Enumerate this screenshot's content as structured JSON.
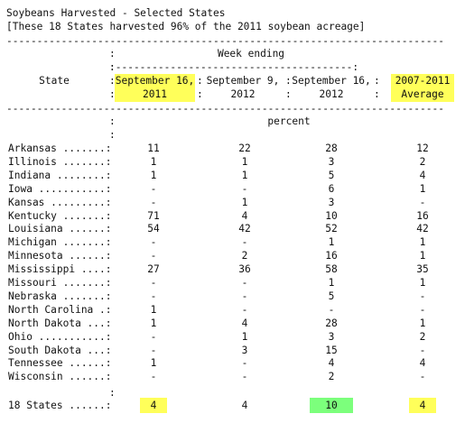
{
  "title_line1": "Soybeans Harvested - Selected States",
  "title_line2": "[These 18 States harvested 96% of the 2011 soybean acreage]",
  "header": {
    "week_ending": "Week ending",
    "state": "State",
    "col1": [
      "September 16,",
      "2011"
    ],
    "col2": [
      "September 9,",
      "2012"
    ],
    "col3": [
      "September 16,",
      "2012"
    ],
    "col4": [
      "2007-2011",
      "Average"
    ],
    "unit": "percent"
  },
  "rows": [
    {
      "state": "Arkansas .......:",
      "v": [
        "11",
        "22",
        "28",
        "12"
      ]
    },
    {
      "state": "Illinois .......:",
      "v": [
        "1",
        "1",
        "3",
        "2"
      ]
    },
    {
      "state": "Indiana ........:",
      "v": [
        "1",
        "1",
        "5",
        "4"
      ]
    },
    {
      "state": "Iowa ...........:",
      "v": [
        "-",
        "-",
        "6",
        "1"
      ]
    },
    {
      "state": "Kansas .........:",
      "v": [
        "-",
        "1",
        "3",
        "-"
      ]
    },
    {
      "state": "Kentucky .......:",
      "v": [
        "71",
        "4",
        "10",
        "16"
      ]
    },
    {
      "state": "Louisiana ......:",
      "v": [
        "54",
        "42",
        "52",
        "42"
      ]
    },
    {
      "state": "Michigan .......:",
      "v": [
        "-",
        "-",
        "1",
        "1"
      ]
    },
    {
      "state": "Minnesota ......:",
      "v": [
        "-",
        "2",
        "16",
        "1"
      ]
    },
    {
      "state": "Mississippi ....:",
      "v": [
        "27",
        "36",
        "58",
        "35"
      ]
    },
    {
      "state": "Missouri .......:",
      "v": [
        "-",
        "-",
        "1",
        "1"
      ]
    },
    {
      "state": "Nebraska .......:",
      "v": [
        "-",
        "-",
        "5",
        "-"
      ]
    },
    {
      "state": "North Carolina .:",
      "v": [
        "1",
        "-",
        "-",
        "-"
      ]
    },
    {
      "state": "North Dakota ...:",
      "v": [
        "1",
        "4",
        "28",
        "1"
      ]
    },
    {
      "state": "Ohio ...........:",
      "v": [
        "-",
        "1",
        "3",
        "2"
      ]
    },
    {
      "state": "South Dakota ...:",
      "v": [
        "-",
        "3",
        "15",
        "-"
      ]
    },
    {
      "state": "Tennessee ......:",
      "v": [
        "1",
        "-",
        "4",
        "4"
      ]
    },
    {
      "state": "Wisconsin ......:",
      "v": [
        "-",
        "-",
        "2",
        "-"
      ]
    }
  ],
  "total": {
    "state": "18 States ......:",
    "v": [
      "4",
      "4",
      "10",
      "4"
    ]
  },
  "colors": {
    "highlight_yellow": "#ffff5a",
    "highlight_green": "#7cff7c"
  }
}
